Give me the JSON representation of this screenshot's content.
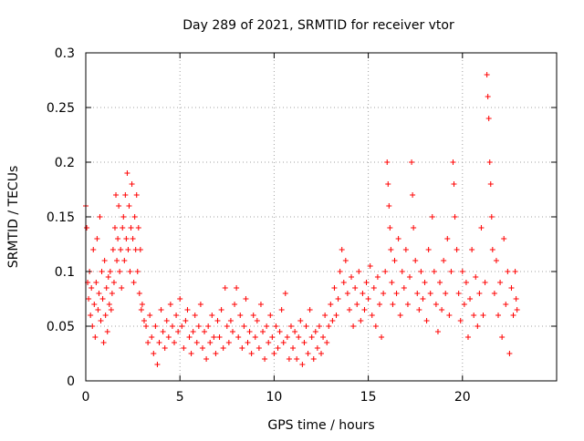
{
  "chart_data": {
    "type": "scatter",
    "title": "Day 289 of 2021, SRMTID for receiver vtor",
    "xlabel": "GPS time / hours",
    "ylabel": "SRMTID / TECUs",
    "xlim": [
      0,
      25
    ],
    "ylim": [
      0,
      0.3
    ],
    "xticks": [
      0,
      5,
      10,
      15,
      20
    ],
    "xtick_labels": [
      "0",
      "5",
      "10",
      "15",
      "20"
    ],
    "yticks": [
      0,
      0.05,
      0.1,
      0.15,
      0.2,
      0.25,
      0.3
    ],
    "ytick_labels": [
      "0",
      "0.05",
      "0.1",
      "0.15",
      "0.2",
      "0.25",
      "0.3"
    ],
    "grid": true,
    "marker": "+",
    "series": [
      {
        "name": "SRMTID",
        "color": "#ff0000",
        "points": [
          [
            0.0,
            0.16
          ],
          [
            0.05,
            0.14
          ],
          [
            0.1,
            0.09
          ],
          [
            0.15,
            0.075
          ],
          [
            0.2,
            0.1
          ],
          [
            0.25,
            0.06
          ],
          [
            0.3,
            0.085
          ],
          [
            0.35,
            0.05
          ],
          [
            0.4,
            0.12
          ],
          [
            0.45,
            0.07
          ],
          [
            0.5,
            0.04
          ],
          [
            0.55,
            0.09
          ],
          [
            0.6,
            0.13
          ],
          [
            0.65,
            0.065
          ],
          [
            0.7,
            0.08
          ],
          [
            0.75,
            0.15
          ],
          [
            0.8,
            0.055
          ],
          [
            0.85,
            0.1
          ],
          [
            0.9,
            0.075
          ],
          [
            0.95,
            0.035
          ],
          [
            1.0,
            0.11
          ],
          [
            1.05,
            0.06
          ],
          [
            1.1,
            0.085
          ],
          [
            1.15,
            0.045
          ],
          [
            1.2,
            0.095
          ],
          [
            1.25,
            0.07
          ],
          [
            1.3,
            0.1
          ],
          [
            1.35,
            0.065
          ],
          [
            1.4,
            0.08
          ],
          [
            1.45,
            0.12
          ],
          [
            1.5,
            0.09
          ],
          [
            1.55,
            0.14
          ],
          [
            1.6,
            0.17
          ],
          [
            1.65,
            0.11
          ],
          [
            1.7,
            0.13
          ],
          [
            1.75,
            0.16
          ],
          [
            1.8,
            0.1
          ],
          [
            1.85,
            0.12
          ],
          [
            1.9,
            0.085
          ],
          [
            1.95,
            0.14
          ],
          [
            2.0,
            0.15
          ],
          [
            2.05,
            0.11
          ],
          [
            2.1,
            0.17
          ],
          [
            2.15,
            0.13
          ],
          [
            2.2,
            0.19
          ],
          [
            2.25,
            0.12
          ],
          [
            2.3,
            0.16
          ],
          [
            2.35,
            0.1
          ],
          [
            2.4,
            0.14
          ],
          [
            2.45,
            0.18
          ],
          [
            2.5,
            0.13
          ],
          [
            2.55,
            0.09
          ],
          [
            2.6,
            0.15
          ],
          [
            2.65,
            0.12
          ],
          [
            2.7,
            0.17
          ],
          [
            2.75,
            0.1
          ],
          [
            2.8,
            0.14
          ],
          [
            2.85,
            0.08
          ],
          [
            2.9,
            0.12
          ],
          [
            2.95,
            0.065
          ],
          [
            3.0,
            0.07
          ],
          [
            3.1,
            0.055
          ],
          [
            3.2,
            0.05
          ],
          [
            3.3,
            0.035
          ],
          [
            3.4,
            0.06
          ],
          [
            3.5,
            0.04
          ],
          [
            3.6,
            0.025
          ],
          [
            3.7,
            0.05
          ],
          [
            3.8,
            0.015
          ],
          [
            3.9,
            0.035
          ],
          [
            4.0,
            0.065
          ],
          [
            4.1,
            0.045
          ],
          [
            4.2,
            0.03
          ],
          [
            4.3,
            0.055
          ],
          [
            4.4,
            0.04
          ],
          [
            4.5,
            0.07
          ],
          [
            4.6,
            0.05
          ],
          [
            4.7,
            0.035
          ],
          [
            4.8,
            0.06
          ],
          [
            4.9,
            0.045
          ],
          [
            5.0,
            0.075
          ],
          [
            5.1,
            0.05
          ],
          [
            5.2,
            0.03
          ],
          [
            5.3,
            0.055
          ],
          [
            5.4,
            0.065
          ],
          [
            5.5,
            0.04
          ],
          [
            5.6,
            0.025
          ],
          [
            5.7,
            0.045
          ],
          [
            5.8,
            0.06
          ],
          [
            5.9,
            0.035
          ],
          [
            6.0,
            0.05
          ],
          [
            6.1,
            0.07
          ],
          [
            6.2,
            0.03
          ],
          [
            6.3,
            0.045
          ],
          [
            6.4,
            0.02
          ],
          [
            6.5,
            0.05
          ],
          [
            6.6,
            0.035
          ],
          [
            6.7,
            0.06
          ],
          [
            6.8,
            0.04
          ],
          [
            6.9,
            0.025
          ],
          [
            7.0,
            0.055
          ],
          [
            7.1,
            0.04
          ],
          [
            7.2,
            0.065
          ],
          [
            7.3,
            0.03
          ],
          [
            7.4,
            0.085
          ],
          [
            7.5,
            0.05
          ],
          [
            7.6,
            0.035
          ],
          [
            7.7,
            0.055
          ],
          [
            7.8,
            0.045
          ],
          [
            7.9,
            0.07
          ],
          [
            8.0,
            0.085
          ],
          [
            8.1,
            0.04
          ],
          [
            8.2,
            0.06
          ],
          [
            8.3,
            0.03
          ],
          [
            8.4,
            0.05
          ],
          [
            8.5,
            0.075
          ],
          [
            8.6,
            0.035
          ],
          [
            8.7,
            0.045
          ],
          [
            8.8,
            0.025
          ],
          [
            8.9,
            0.06
          ],
          [
            9.0,
            0.04
          ],
          [
            9.1,
            0.055
          ],
          [
            9.2,
            0.03
          ],
          [
            9.3,
            0.07
          ],
          [
            9.4,
            0.045
          ],
          [
            9.5,
            0.02
          ],
          [
            9.6,
            0.05
          ],
          [
            9.7,
            0.035
          ],
          [
            9.8,
            0.06
          ],
          [
            9.9,
            0.04
          ],
          [
            10.0,
            0.025
          ],
          [
            10.1,
            0.05
          ],
          [
            10.2,
            0.03
          ],
          [
            10.3,
            0.045
          ],
          [
            10.4,
            0.065
          ],
          [
            10.5,
            0.035
          ],
          [
            10.6,
            0.08
          ],
          [
            10.7,
            0.04
          ],
          [
            10.8,
            0.02
          ],
          [
            10.9,
            0.05
          ],
          [
            11.0,
            0.03
          ],
          [
            11.1,
            0.045
          ],
          [
            11.2,
            0.02
          ],
          [
            11.3,
            0.04
          ],
          [
            11.4,
            0.055
          ],
          [
            11.5,
            0.015
          ],
          [
            11.6,
            0.035
          ],
          [
            11.7,
            0.05
          ],
          [
            11.8,
            0.025
          ],
          [
            11.9,
            0.065
          ],
          [
            12.0,
            0.04
          ],
          [
            12.1,
            0.02
          ],
          [
            12.2,
            0.045
          ],
          [
            12.3,
            0.03
          ],
          [
            12.4,
            0.05
          ],
          [
            12.5,
            0.025
          ],
          [
            12.6,
            0.04
          ],
          [
            12.7,
            0.06
          ],
          [
            12.8,
            0.035
          ],
          [
            12.9,
            0.05
          ],
          [
            13.0,
            0.07
          ],
          [
            13.1,
            0.055
          ],
          [
            13.2,
            0.085
          ],
          [
            13.3,
            0.06
          ],
          [
            13.4,
            0.075
          ],
          [
            13.5,
            0.1
          ],
          [
            13.6,
            0.12
          ],
          [
            13.7,
            0.09
          ],
          [
            13.8,
            0.11
          ],
          [
            13.9,
            0.08
          ],
          [
            14.0,
            0.065
          ],
          [
            14.1,
            0.095
          ],
          [
            14.2,
            0.05
          ],
          [
            14.3,
            0.085
          ],
          [
            14.4,
            0.07
          ],
          [
            14.5,
            0.1
          ],
          [
            14.6,
            0.055
          ],
          [
            14.7,
            0.08
          ],
          [
            14.8,
            0.065
          ],
          [
            14.9,
            0.09
          ],
          [
            15.0,
            0.075
          ],
          [
            15.1,
            0.105
          ],
          [
            15.2,
            0.06
          ],
          [
            15.3,
            0.085
          ],
          [
            15.4,
            0.05
          ],
          [
            15.5,
            0.095
          ],
          [
            15.6,
            0.07
          ],
          [
            15.7,
            0.04
          ],
          [
            15.8,
            0.08
          ],
          [
            15.9,
            0.1
          ],
          [
            16.0,
            0.2
          ],
          [
            16.05,
            0.18
          ],
          [
            16.1,
            0.16
          ],
          [
            16.15,
            0.14
          ],
          [
            16.2,
            0.12
          ],
          [
            16.25,
            0.09
          ],
          [
            16.3,
            0.07
          ],
          [
            16.4,
            0.11
          ],
          [
            16.5,
            0.08
          ],
          [
            16.6,
            0.13
          ],
          [
            16.7,
            0.06
          ],
          [
            16.8,
            0.1
          ],
          [
            16.9,
            0.085
          ],
          [
            17.0,
            0.12
          ],
          [
            17.1,
            0.07
          ],
          [
            17.2,
            0.095
          ],
          [
            17.3,
            0.2
          ],
          [
            17.35,
            0.17
          ],
          [
            17.4,
            0.14
          ],
          [
            17.5,
            0.11
          ],
          [
            17.6,
            0.08
          ],
          [
            17.7,
            0.065
          ],
          [
            17.8,
            0.1
          ],
          [
            17.9,
            0.075
          ],
          [
            18.0,
            0.09
          ],
          [
            18.1,
            0.055
          ],
          [
            18.2,
            0.12
          ],
          [
            18.3,
            0.08
          ],
          [
            18.4,
            0.15
          ],
          [
            18.5,
            0.1
          ],
          [
            18.6,
            0.07
          ],
          [
            18.7,
            0.045
          ],
          [
            18.8,
            0.09
          ],
          [
            18.9,
            0.065
          ],
          [
            19.0,
            0.11
          ],
          [
            19.1,
            0.08
          ],
          [
            19.2,
            0.13
          ],
          [
            19.3,
            0.06
          ],
          [
            19.4,
            0.1
          ],
          [
            19.5,
            0.2
          ],
          [
            19.55,
            0.18
          ],
          [
            19.6,
            0.15
          ],
          [
            19.7,
            0.12
          ],
          [
            19.8,
            0.08
          ],
          [
            19.9,
            0.055
          ],
          [
            20.0,
            0.1
          ],
          [
            20.1,
            0.07
          ],
          [
            20.2,
            0.09
          ],
          [
            20.3,
            0.04
          ],
          [
            20.4,
            0.075
          ],
          [
            20.5,
            0.12
          ],
          [
            20.6,
            0.06
          ],
          [
            20.7,
            0.095
          ],
          [
            20.8,
            0.05
          ],
          [
            20.9,
            0.08
          ],
          [
            21.0,
            0.14
          ],
          [
            21.1,
            0.06
          ],
          [
            21.2,
            0.09
          ],
          [
            21.3,
            0.28
          ],
          [
            21.35,
            0.26
          ],
          [
            21.4,
            0.24
          ],
          [
            21.45,
            0.2
          ],
          [
            21.5,
            0.18
          ],
          [
            21.55,
            0.15
          ],
          [
            21.6,
            0.12
          ],
          [
            21.7,
            0.08
          ],
          [
            21.8,
            0.11
          ],
          [
            21.9,
            0.06
          ],
          [
            22.0,
            0.09
          ],
          [
            22.1,
            0.04
          ],
          [
            22.2,
            0.13
          ],
          [
            22.3,
            0.07
          ],
          [
            22.4,
            0.1
          ],
          [
            22.5,
            0.025
          ],
          [
            22.6,
            0.085
          ],
          [
            22.7,
            0.06
          ],
          [
            22.8,
            0.1
          ],
          [
            22.85,
            0.075
          ],
          [
            22.9,
            0.065
          ]
        ]
      }
    ]
  }
}
